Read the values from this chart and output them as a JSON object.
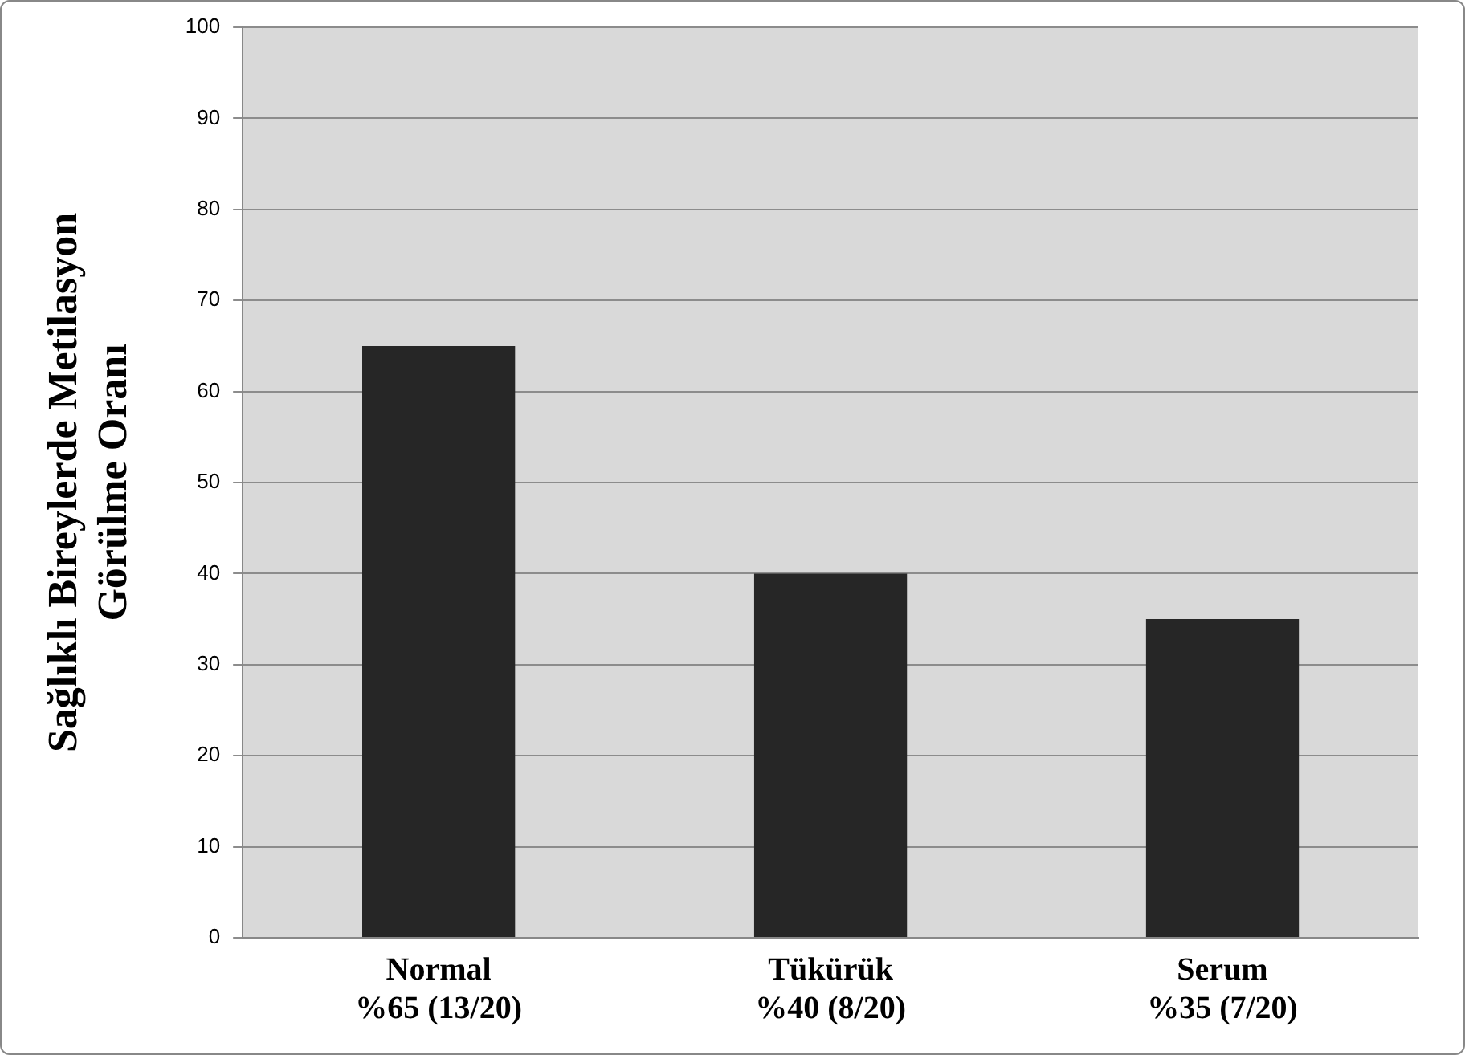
{
  "chart_data": {
    "type": "bar",
    "ylabel": "Sağlıklı Bireylerde Metilasyon\nGörülme Oranı",
    "categories": [
      "Normal\n%65 (13/20)",
      "Tükürük\n%40 (8/20)",
      "Serum\n%35 (7/20)"
    ],
    "values": [
      65,
      40,
      35
    ],
    "color": "#262626",
    "ylim": [
      0,
      100
    ],
    "yticks": [
      0,
      10,
      20,
      30,
      40,
      50,
      60,
      70,
      80,
      90,
      100
    ],
    "grid": "y",
    "legend": false
  }
}
